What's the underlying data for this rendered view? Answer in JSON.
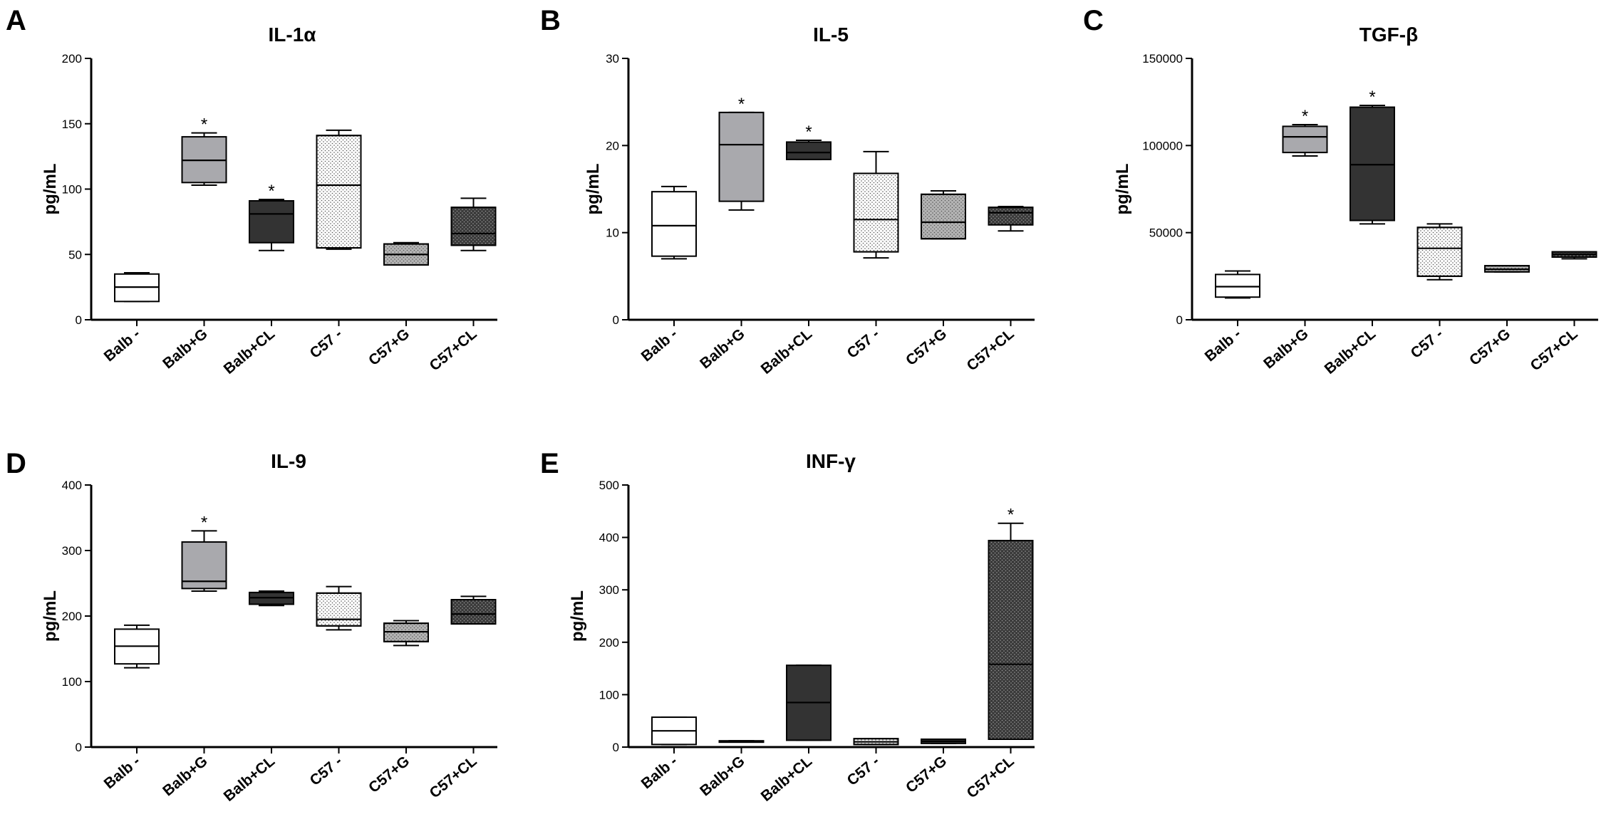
{
  "figure": {
    "panel_letters": [
      "A",
      "B",
      "C",
      "D",
      "E"
    ]
  },
  "styles": {
    "white": {
      "fill": "#ffffff",
      "pattern": "none"
    },
    "lgray": {
      "fill": "#a9a9ad",
      "pattern": "none"
    },
    "dark": {
      "fill": "#333333",
      "pattern": "none"
    },
    "dotted": {
      "fill": "#ffffff",
      "pattern": "dots-dark"
    },
    "mgray": {
      "fill": "#b4b4b4",
      "pattern": "dots-dark"
    },
    "darkdot": {
      "fill": "#3a3a3a",
      "pattern": "dots-light"
    }
  },
  "chart_data": [
    {
      "panel": "A",
      "type": "box",
      "title": "IL-1α",
      "ylabel": "pg/mL",
      "xlabel": "",
      "ylim": [
        0,
        200
      ],
      "yticks": [
        0,
        50,
        100,
        150,
        200
      ],
      "ytick_labels": [
        "0",
        "50",
        "100",
        "150",
        "200"
      ],
      "categories": [
        "Balb -",
        "Balb+G",
        "Balb+CL",
        "C57 -",
        "C57+G",
        "C57+CL"
      ],
      "series": [
        {
          "name": "Balb -",
          "style": "white",
          "min": 14,
          "q1": 14,
          "median": 25,
          "q3": 35,
          "max": 36,
          "sig": ""
        },
        {
          "name": "Balb+G",
          "style": "lgray",
          "min": 103,
          "q1": 105,
          "median": 122,
          "q3": 140,
          "max": 143,
          "sig": "*"
        },
        {
          "name": "Balb+CL",
          "style": "dark",
          "min": 53,
          "q1": 59,
          "median": 81,
          "q3": 91,
          "max": 92,
          "sig": "*"
        },
        {
          "name": "C57 -",
          "style": "dotted",
          "min": 54,
          "q1": 55,
          "median": 103,
          "q3": 141,
          "max": 145,
          "sig": ""
        },
        {
          "name": "C57+G",
          "style": "mgray",
          "min": 42,
          "q1": 42,
          "median": 50,
          "q3": 58,
          "max": 59,
          "sig": ""
        },
        {
          "name": "C57+CL",
          "style": "darkdot",
          "min": 53,
          "q1": 57,
          "median": 66,
          "q3": 86,
          "max": 93,
          "sig": ""
        }
      ]
    },
    {
      "panel": "B",
      "type": "box",
      "title": "IL-5",
      "ylabel": "pg/mL",
      "xlabel": "",
      "ylim": [
        0,
        30
      ],
      "yticks": [
        0,
        10,
        20,
        30
      ],
      "ytick_labels": [
        "0",
        "10",
        "20",
        "30"
      ],
      "categories": [
        "Balb -",
        "Balb+G",
        "Balb+CL",
        "C57 -",
        "C57+G",
        "C57+CL"
      ],
      "series": [
        {
          "name": "Balb -",
          "style": "white",
          "min": 7.0,
          "q1": 7.3,
          "median": 10.8,
          "q3": 14.7,
          "max": 15.3,
          "sig": ""
        },
        {
          "name": "Balb+G",
          "style": "lgray",
          "min": 12.6,
          "q1": 13.6,
          "median": 20.1,
          "q3": 23.8,
          "max": 23.8,
          "sig": "*"
        },
        {
          "name": "Balb+CL",
          "style": "dark",
          "min": 18.4,
          "q1": 18.4,
          "median": 19.2,
          "q3": 20.4,
          "max": 20.6,
          "sig": "*"
        },
        {
          "name": "C57 -",
          "style": "dotted",
          "min": 7.1,
          "q1": 7.8,
          "median": 11.5,
          "q3": 16.8,
          "max": 19.3,
          "sig": ""
        },
        {
          "name": "C57+G",
          "style": "mgray",
          "min": 9.3,
          "q1": 9.3,
          "median": 11.2,
          "q3": 14.4,
          "max": 14.8,
          "sig": ""
        },
        {
          "name": "C57+CL",
          "style": "darkdot",
          "min": 10.2,
          "q1": 10.9,
          "median": 12.3,
          "q3": 12.9,
          "max": 13.0,
          "sig": ""
        }
      ]
    },
    {
      "panel": "C",
      "type": "box",
      "title": "TGF-β",
      "ylabel": "pg/mL",
      "xlabel": "",
      "ylim": [
        0,
        150000
      ],
      "yticks": [
        0,
        50000,
        100000,
        150000
      ],
      "ytick_labels": [
        "0",
        "50000",
        "100000",
        "150000"
      ],
      "categories": [
        "Balb -",
        "Balb+G",
        "Balb+CL",
        "C57 -",
        "C57+G",
        "C57+CL"
      ],
      "series": [
        {
          "name": "Balb -",
          "style": "white",
          "min": 12500,
          "q1": 13000,
          "median": 19000,
          "q3": 26000,
          "max": 28000,
          "sig": ""
        },
        {
          "name": "Balb+G",
          "style": "lgray",
          "min": 94000,
          "q1": 96000,
          "median": 105000,
          "q3": 111000,
          "max": 112000,
          "sig": "*"
        },
        {
          "name": "Balb+CL",
          "style": "dark",
          "min": 55000,
          "q1": 57000,
          "median": 89000,
          "q3": 122000,
          "max": 123000,
          "sig": "*"
        },
        {
          "name": "C57 -",
          "style": "dotted",
          "min": 23000,
          "q1": 25000,
          "median": 41000,
          "q3": 53000,
          "max": 55000,
          "sig": ""
        },
        {
          "name": "C57+G",
          "style": "mgray",
          "min": 27500,
          "q1": 27500,
          "median": 29000,
          "q3": 31000,
          "max": 31000,
          "sig": ""
        },
        {
          "name": "C57+CL",
          "style": "darkdot",
          "min": 35000,
          "q1": 36000,
          "median": 37500,
          "q3": 39000,
          "max": 39000,
          "sig": ""
        }
      ]
    },
    {
      "panel": "D",
      "type": "box",
      "title": "IL-9",
      "ylabel": "pg/mL",
      "xlabel": "",
      "ylim": [
        0,
        400
      ],
      "yticks": [
        0,
        100,
        200,
        300,
        400
      ],
      "ytick_labels": [
        "0",
        "100",
        "200",
        "300",
        "400"
      ],
      "categories": [
        "Balb -",
        "Balb+G",
        "Balb+CL",
        "C57 -",
        "C57+G",
        "C57+CL"
      ],
      "series": [
        {
          "name": "Balb -",
          "style": "white",
          "min": 121,
          "q1": 127,
          "median": 154,
          "q3": 180,
          "max": 186,
          "sig": ""
        },
        {
          "name": "Balb+G",
          "style": "lgray",
          "min": 238,
          "q1": 242,
          "median": 253,
          "q3": 313,
          "max": 330,
          "sig": "*"
        },
        {
          "name": "Balb+CL",
          "style": "dark",
          "min": 216,
          "q1": 218,
          "median": 228,
          "q3": 236,
          "max": 238,
          "sig": ""
        },
        {
          "name": "C57 -",
          "style": "dotted",
          "min": 179,
          "q1": 185,
          "median": 195,
          "q3": 235,
          "max": 245,
          "sig": ""
        },
        {
          "name": "C57+G",
          "style": "mgray",
          "min": 155,
          "q1": 161,
          "median": 176,
          "q3": 189,
          "max": 193,
          "sig": ""
        },
        {
          "name": "C57+CL",
          "style": "darkdot",
          "min": 188,
          "q1": 188,
          "median": 203,
          "q3": 225,
          "max": 230,
          "sig": ""
        }
      ]
    },
    {
      "panel": "E",
      "type": "box",
      "title": "INF-γ",
      "ylabel": "pg/mL",
      "xlabel": "",
      "ylim": [
        0,
        500
      ],
      "yticks": [
        0,
        100,
        200,
        300,
        400,
        500
      ],
      "ytick_labels": [
        "0",
        "100",
        "200",
        "300",
        "400",
        "500"
      ],
      "categories": [
        "Balb -",
        "Balb+G",
        "Balb+CL",
        "C57 -",
        "C57+G",
        "C57+CL"
      ],
      "series": [
        {
          "name": "Balb -",
          "style": "white",
          "min": 5,
          "q1": 5,
          "median": 31,
          "q3": 57,
          "max": 57,
          "sig": ""
        },
        {
          "name": "Balb+G",
          "style": "lgray",
          "min": 10,
          "q1": 10,
          "median": 11,
          "q3": 12,
          "max": 12,
          "sig": ""
        },
        {
          "name": "Balb+CL",
          "style": "dark",
          "min": 13,
          "q1": 13,
          "median": 85,
          "q3": 156,
          "max": 156,
          "sig": ""
        },
        {
          "name": "C57 -",
          "style": "dotted",
          "min": 5,
          "q1": 5,
          "median": 10,
          "q3": 16,
          "max": 16,
          "sig": ""
        },
        {
          "name": "C57+G",
          "style": "dark",
          "min": 7,
          "q1": 7,
          "median": 11,
          "q3": 15,
          "max": 15,
          "sig": ""
        },
        {
          "name": "C57+CL",
          "style": "darkdot",
          "min": 15,
          "q1": 15,
          "median": 158,
          "q3": 394,
          "max": 427,
          "sig": "*"
        }
      ]
    }
  ]
}
